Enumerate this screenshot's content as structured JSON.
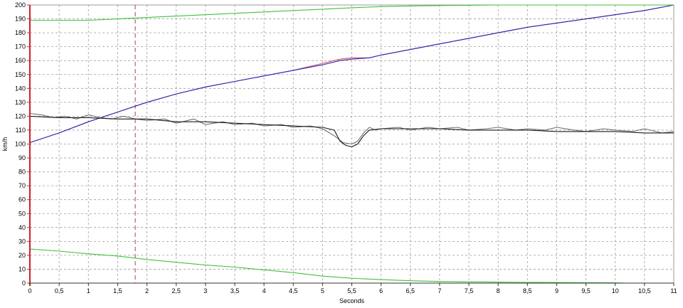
{
  "chart_data": {
    "type": "line",
    "xlabel": "Seconds",
    "ylabel": "km/h",
    "xlim": [
      0,
      11
    ],
    "ylim": [
      0,
      200
    ],
    "x_ticks": [
      0,
      0.5,
      1,
      1.5,
      2,
      2.5,
      3,
      3.5,
      4,
      4.5,
      5,
      5.5,
      6,
      6.5,
      7,
      7.5,
      8,
      8.5,
      9,
      9.5,
      10,
      10.5,
      11
    ],
    "x_tick_labels": [
      "0",
      "0,5",
      "1",
      "1,5",
      "2",
      "2,5",
      "3",
      "3,5",
      "4",
      "4,5",
      "5",
      "5,5",
      "6",
      "6,5",
      "7",
      "7,5",
      "8",
      "8,5",
      "9",
      "9,5",
      "10",
      "10,5",
      "11"
    ],
    "y_ticks": [
      0,
      10,
      20,
      30,
      40,
      50,
      60,
      70,
      80,
      90,
      100,
      110,
      120,
      130,
      140,
      150,
      160,
      170,
      180,
      190,
      200
    ],
    "y_tick_labels": [
      "0",
      "10",
      "20",
      "30",
      "40",
      "50",
      "60",
      "70",
      "80",
      "90",
      "100",
      "110",
      "120",
      "130",
      "140",
      "150",
      "160",
      "170",
      "180",
      "190",
      "200"
    ],
    "grid": true,
    "marker_line": {
      "x": 1.8,
      "color": "#b03a4a"
    },
    "series": [
      {
        "color": "#d94a5a",
        "x": [
          0,
          0.5,
          1,
          1.5,
          2,
          2.5,
          3,
          3.5,
          4,
          4.5,
          5,
          5.3,
          5.5,
          5.8,
          6,
          6.5,
          7,
          7.5,
          8,
          8.5,
          9,
          9.5,
          10,
          10.5,
          11
        ],
        "y": [
          101,
          108,
          116,
          123,
          130,
          136,
          141,
          145,
          149,
          153,
          158,
          161,
          162,
          162,
          164,
          168,
          172,
          176,
          180,
          184,
          187,
          190,
          193,
          196,
          200
        ]
      },
      {
        "color": "#2a2ab8",
        "x": [
          0,
          0.5,
          1,
          1.5,
          2,
          2.5,
          3,
          3.5,
          4,
          4.5,
          5,
          5.3,
          5.5,
          5.8,
          6,
          6.5,
          7,
          7.5,
          8,
          8.5,
          9,
          9.5,
          10,
          10.5,
          11
        ],
        "y": [
          101,
          108,
          116,
          123,
          130,
          136,
          141,
          145,
          149,
          153,
          157,
          160,
          161,
          162,
          164,
          168,
          172,
          176,
          180,
          184,
          187,
          190,
          193,
          196,
          200
        ]
      },
      {
        "color": "#6f6f6f",
        "x": [
          0,
          0.2,
          0.4,
          0.6,
          0.8,
          1.0,
          1.2,
          1.4,
          1.6,
          1.8,
          2.0,
          2.3,
          2.5,
          2.8,
          3.0,
          3.3,
          3.5,
          3.8,
          4.0,
          4.3,
          4.5,
          4.8,
          5.0,
          5.2,
          5.35,
          5.5,
          5.6,
          5.7,
          5.8,
          5.9,
          6.0,
          6.3,
          6.5,
          6.8,
          7.0,
          7.3,
          7.5,
          7.8,
          8.0,
          8.3,
          8.5,
          8.8,
          9.0,
          9.3,
          9.5,
          9.8,
          10.0,
          10.3,
          10.5,
          10.8,
          11.0
        ],
        "y": [
          122,
          121,
          119,
          120,
          118,
          121,
          119,
          118,
          120,
          118,
          117,
          118,
          115,
          118,
          114,
          116,
          114,
          115,
          113,
          114,
          112,
          113,
          111,
          106,
          101,
          100,
          102,
          108,
          112,
          110,
          111,
          112,
          110,
          112,
          111,
          112,
          110,
          111,
          112,
          110,
          111,
          110,
          112,
          110,
          109,
          111,
          110,
          109,
          111,
          108,
          109
        ]
      },
      {
        "color": "#1a1a1a",
        "x": [
          0,
          0.5,
          1,
          1.5,
          2,
          2.5,
          3,
          3.5,
          4,
          4.5,
          5,
          5.2,
          5.3,
          5.4,
          5.5,
          5.6,
          5.7,
          5.8,
          6,
          6.5,
          7,
          7.5,
          8,
          8.5,
          9,
          9.5,
          10,
          10.5,
          11
        ],
        "y": [
          120,
          119,
          119,
          118,
          118,
          116,
          116,
          115,
          114,
          113,
          112,
          110,
          102,
          99,
          98,
          100,
          106,
          110,
          111,
          111,
          111,
          110,
          110,
          110,
          109,
          109,
          109,
          108,
          108
        ]
      },
      {
        "color": "#3ec23e",
        "x": [
          0,
          0.5,
          1,
          1.5,
          2,
          2.5,
          3,
          3.5,
          4,
          4.5,
          5,
          5.5,
          6,
          6.5,
          7,
          7.5,
          8,
          8.5,
          9,
          9.5,
          10,
          10.5,
          11
        ],
        "y": [
          189,
          189,
          189,
          190,
          191,
          192,
          193,
          194,
          195,
          196,
          197,
          198,
          198.8,
          199.3,
          199.6,
          199.8,
          200,
          200,
          200,
          200,
          200,
          200,
          200
        ]
      },
      {
        "color": "#3ec23e",
        "x": [
          0,
          0.5,
          1,
          1.5,
          2,
          2.5,
          3,
          3.5,
          4,
          4.5,
          5,
          5.5,
          6,
          6.5,
          7,
          7.5,
          8,
          8.5,
          9,
          9.5,
          10,
          10.2
        ],
        "y": [
          24.5,
          23,
          21,
          19.5,
          17,
          15,
          13,
          11.5,
          9.5,
          7.5,
          5,
          3.5,
          2.5,
          1.7,
          1.2,
          0.9,
          0.7,
          0.5,
          0.4,
          0.3,
          0.2,
          0
        ]
      }
    ]
  }
}
